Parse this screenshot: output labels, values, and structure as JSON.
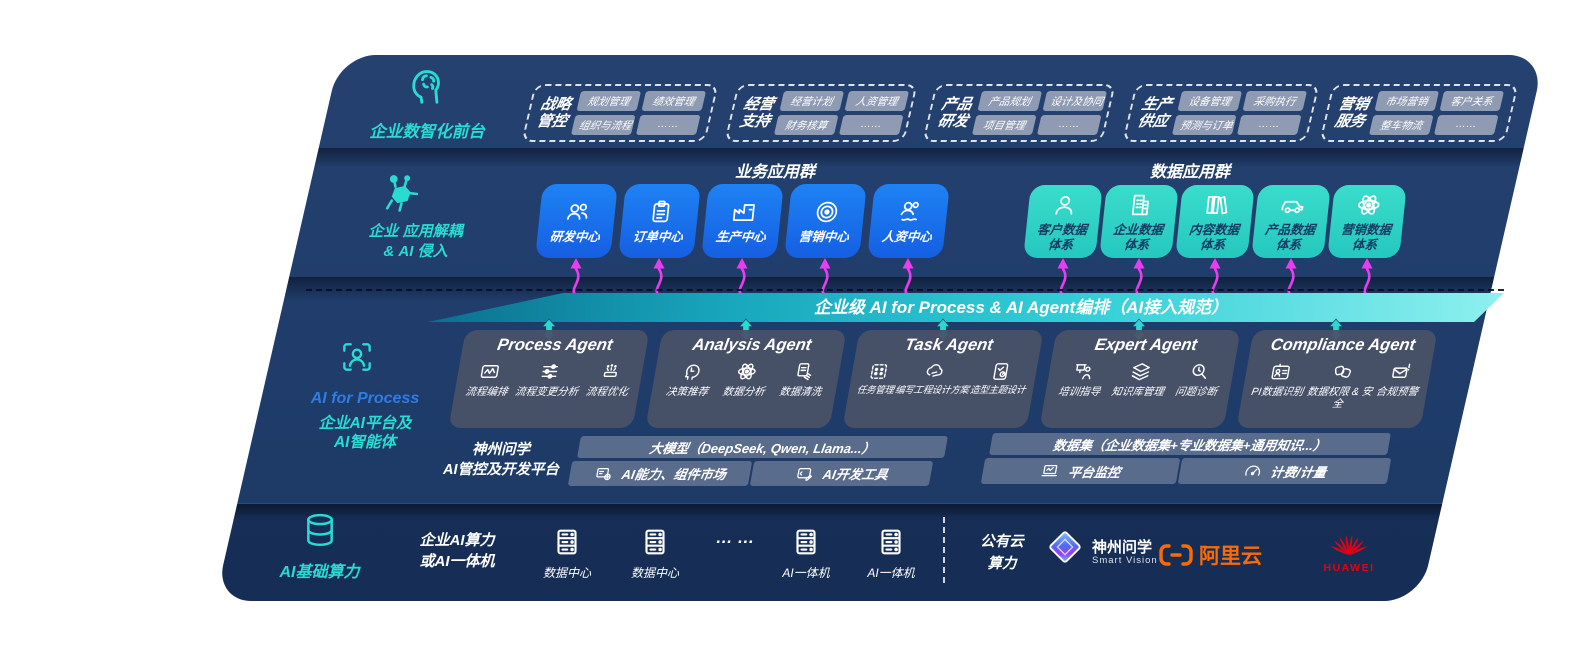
{
  "front": {
    "label": "企业数智化前台",
    "groups": [
      {
        "t1": "战略",
        "t2": "管控",
        "items": [
          "规划管理",
          "绩效管理",
          "组织与流程",
          "……"
        ]
      },
      {
        "t1": "经营",
        "t2": "支持",
        "items": [
          "经营计划",
          "人资管理",
          "财务核算",
          "……"
        ]
      },
      {
        "t1": "产品",
        "t2": "研发",
        "items": [
          "产品规划",
          "设计及协同",
          "项目管理",
          "……"
        ]
      },
      {
        "t1": "生产",
        "t2": "供应",
        "items": [
          "设备管理",
          "采购执行",
          "预测与订单",
          "……"
        ]
      },
      {
        "t1": "营销",
        "t2": "服务",
        "items": [
          "市场营销",
          "客户关系",
          "整车物流",
          "……"
        ]
      }
    ]
  },
  "apps": {
    "label_l1": "企业 应用解耦",
    "label_l2": "& AI 侵入",
    "business_title": "业务应用群",
    "business": [
      {
        "label": "研发中心",
        "icon": "users-icon"
      },
      {
        "label": "订单中心",
        "icon": "clipboard-icon"
      },
      {
        "label": "生产中心",
        "icon": "factory-icon"
      },
      {
        "label": "营销中心",
        "icon": "target-icon"
      },
      {
        "label": "人资中心",
        "icon": "people-flow-icon"
      }
    ],
    "data_title": "数据应用群",
    "data": [
      {
        "l1": "客户数据",
        "l2": "体系",
        "icon": "person-icon"
      },
      {
        "l1": "企业数据",
        "l2": "体系",
        "icon": "building-icon"
      },
      {
        "l1": "内容数据",
        "l2": "体系",
        "icon": "books-icon"
      },
      {
        "l1": "产品数据",
        "l2": "体系",
        "icon": "car-icon"
      },
      {
        "l1": "营销数据",
        "l2": "体系",
        "icon": "atom-icon"
      }
    ]
  },
  "ai": {
    "label_l1": "AI for Process",
    "label_l2": "企业AI平台及",
    "label_l3": "AI智能体",
    "banner": "企业级 AI for Process & AI Agent编排（AI接入规范）",
    "agents": [
      {
        "title": "Process Agent",
        "items": [
          {
            "label": "流程编排",
            "icon": "flow-chart-icon"
          },
          {
            "label": "流程变更分析",
            "icon": "sliders-icon"
          },
          {
            "label": "流程优化",
            "icon": "machine-icon"
          }
        ]
      },
      {
        "title": "Analysis Agent",
        "items": [
          {
            "label": "决策推荐",
            "icon": "head-ai-icon"
          },
          {
            "label": "数据分析",
            "icon": "atom-icon"
          },
          {
            "label": "数据清洗",
            "icon": "doc-clean-icon"
          }
        ]
      },
      {
        "title": "Task Agent",
        "items": [
          {
            "label": "任务管理",
            "icon": "task-grid-icon"
          },
          {
            "label": "编写工程设计方案",
            "icon": "cloud-edit-icon"
          },
          {
            "label": "造型主题设计",
            "icon": "design-pad-icon"
          }
        ]
      },
      {
        "title": "Expert Agent",
        "items": [
          {
            "label": "培训指导",
            "icon": "training-icon"
          },
          {
            "label": "知识库管理",
            "icon": "layers-icon"
          },
          {
            "label": "问题诊断",
            "icon": "diagnose-icon"
          }
        ]
      },
      {
        "title": "Compliance Agent",
        "items": [
          {
            "label": "PI数据识别",
            "icon": "id-card-icon"
          },
          {
            "label": "数据权限 & 安全",
            "icon": "data-lock-icon"
          },
          {
            "label": "合规预警",
            "icon": "alert-mail-icon"
          }
        ]
      }
    ],
    "platform": {
      "label_l1": "神州问学",
      "label_l2": "AI管控及开发平台",
      "model_bar": "大模型（DeepSeek, Qwen, Llama...）",
      "capability_bar": "AI能力、组件市场",
      "devtools_bar": "AI开发工具",
      "dataset_bar": "数据集（企业数据集+专业数据集+通用知识...）",
      "monitor_bar": "平台监控",
      "billing_bar": "计费/计量"
    }
  },
  "infra": {
    "label": "AI基础算力",
    "compute_l1": "企业AI算力",
    "compute_l2": "或AI一体机",
    "nodes": [
      "数据中心",
      "数据中心"
    ],
    "dots": "… …",
    "nodes2": [
      "AI一体机",
      "AI一体机"
    ],
    "cloud_l1": "公有云",
    "cloud_l2": "算力",
    "vendors": {
      "shenzhou": {
        "name": "神州问学",
        "sub": "Smart Vision"
      },
      "aliyun": {
        "name": "阿里云"
      },
      "huawei": {
        "name": "HUAWEI"
      }
    }
  },
  "icons": {
    "front": "brain-icon",
    "apps": "molecule-icon",
    "ai": "scan-person-icon",
    "infra": "database-icon",
    "node": "server-icon",
    "capability": "module-icon",
    "devtools": "devtools-icon",
    "monitor": "monitor-icon",
    "billing": "gauge-icon",
    "shenzhou": "shenzhou-logo",
    "aliyun": "aliyun-logo",
    "huawei": "huawei-logo"
  },
  "colors": {
    "accent_teal": "#2ADBD2",
    "accent_blue": "#2F7CE4",
    "app_blue": "#1B6EF0",
    "data_teal": "#2ED5C6",
    "arrow_magenta": "#E93DF2",
    "banner_teal_dark": "#0B6F8E",
    "banner_teal_light": "#8FF0EF",
    "panel_navy": "#1F3C6B",
    "aliyun_orange": "#FF6A00",
    "huawei_red": "#E60012"
  }
}
